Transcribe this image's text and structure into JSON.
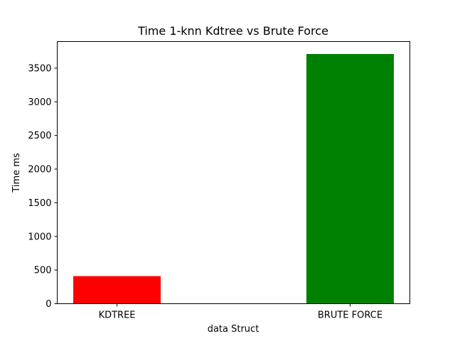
{
  "chart_data": {
    "type": "bar",
    "title": "Time 1-knn Kdtree vs Brute Force",
    "xlabel": "data Struct",
    "ylabel": "Time ms",
    "categories": [
      "KDTREE",
      "BRUTE FORCE"
    ],
    "values": [
      410,
      3710
    ],
    "colors": [
      "#ff0000",
      "#008000"
    ],
    "ylim": [
      0,
      3895
    ],
    "yticks": [
      0,
      500,
      1000,
      1500,
      2000,
      2500,
      3000,
      3500
    ],
    "grid": false,
    "legend": "none"
  }
}
